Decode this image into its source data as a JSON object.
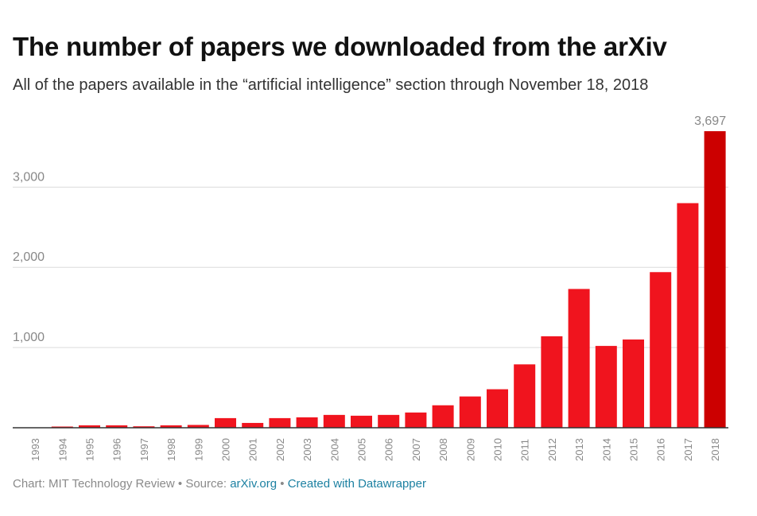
{
  "chart_data": {
    "type": "bar",
    "title": "The number of papers we downloaded from the arXiv",
    "subtitle": "All of the papers available in the “artificial intelligence” section through November 18, 2018",
    "categories": [
      "1993",
      "1994",
      "1995",
      "1996",
      "1997",
      "1998",
      "1999",
      "2000",
      "2001",
      "2002",
      "2003",
      "2004",
      "2005",
      "2006",
      "2007",
      "2008",
      "2009",
      "2010",
      "2011",
      "2012",
      "2013",
      "2014",
      "2015",
      "2016",
      "2017",
      "2018"
    ],
    "values": [
      3,
      15,
      30,
      30,
      18,
      30,
      35,
      120,
      60,
      120,
      130,
      160,
      150,
      160,
      190,
      280,
      390,
      480,
      790,
      1140,
      1730,
      1020,
      1100,
      1940,
      2800,
      3697
    ],
    "highlight_label": "3,697",
    "ylim": [
      0,
      3697
    ],
    "yticks": [
      1000,
      2000,
      3000
    ],
    "ytick_labels": [
      "1,000",
      "2,000",
      "3,000"
    ],
    "xlabel": "",
    "ylabel": "",
    "grid": true,
    "colors": {
      "bar": "#f0141e",
      "bar_highlight": "#cc0000",
      "grid": "#dcdcdc",
      "axis": "#333333",
      "tick_text": "#888888"
    }
  },
  "footer": {
    "credit": "Chart: MIT Technology Review",
    "source_label": "Source:",
    "source_link": "arXiv.org",
    "created_with": "Created with Datawrapper",
    "separator": "•"
  }
}
